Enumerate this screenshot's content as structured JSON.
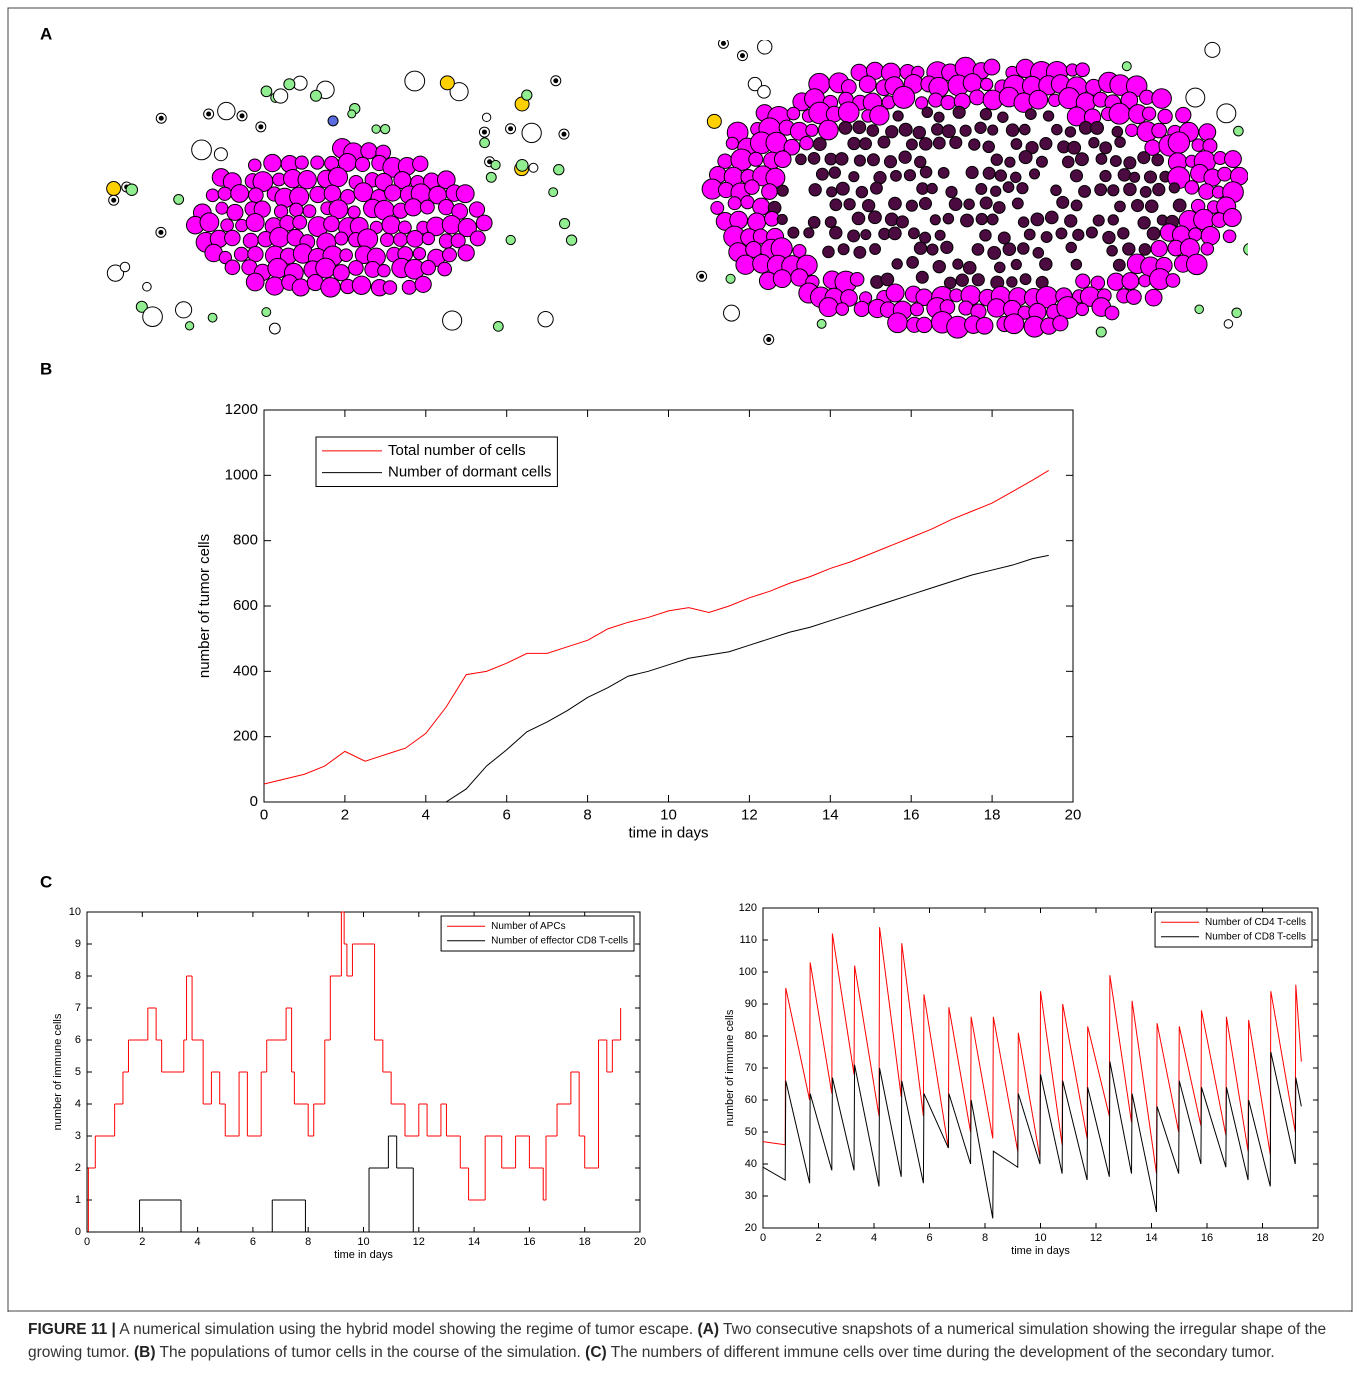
{
  "panel_labels": [
    "A",
    "B",
    "C"
  ],
  "chart_data": [
    {
      "type": "line",
      "xlabel": "time in days",
      "ylabel": "number of tumor cells",
      "xlim": [
        0,
        20
      ],
      "xticks": [
        0,
        2,
        4,
        6,
        8,
        10,
        12,
        14,
        16,
        18,
        20
      ],
      "ylim": [
        0,
        1200
      ],
      "yticks": [
        0,
        200,
        400,
        600,
        800,
        1000,
        1200
      ],
      "legend": "upper left",
      "x": [
        0,
        0.5,
        1,
        1.5,
        2,
        2.5,
        3,
        3.5,
        4,
        4.5,
        5,
        5.5,
        6,
        6.5,
        7,
        7.5,
        8,
        8.5,
        9,
        9.5,
        10,
        10.5,
        11,
        11.5,
        12,
        12.5,
        13,
        13.5,
        14,
        14.5,
        15,
        15.5,
        16,
        16.5,
        17,
        17.5,
        18,
        18.5,
        19,
        19.4
      ],
      "series": [
        {
          "name": "Total number of cells",
          "color": "#ff0000",
          "values": [
            55,
            70,
            85,
            110,
            155,
            125,
            145,
            165,
            210,
            290,
            390,
            400,
            425,
            455,
            455,
            475,
            495,
            530,
            550,
            565,
            585,
            595,
            580,
            600,
            625,
            645,
            670,
            690,
            715,
            735,
            760,
            785,
            810,
            835,
            865,
            890,
            915,
            950,
            985,
            1015
          ]
        },
        {
          "name": "Number of dormant cells",
          "color": "#000000",
          "values": [
            0,
            0,
            0,
            0,
            0,
            0,
            0,
            0,
            0,
            0,
            40,
            110,
            160,
            215,
            245,
            280,
            320,
            350,
            385,
            400,
            420,
            440,
            450,
            460,
            480,
            500,
            520,
            535,
            555,
            575,
            595,
            615,
            635,
            655,
            675,
            695,
            710,
            725,
            745,
            755
          ]
        }
      ]
    },
    {
      "type": "step",
      "xlabel": "time in days",
      "ylabel": "number of immune cells",
      "xlim": [
        0,
        20
      ],
      "xticks": [
        0,
        2,
        4,
        6,
        8,
        10,
        12,
        14,
        16,
        18,
        20
      ],
      "ylim": [
        0,
        10
      ],
      "yticks": [
        0,
        1,
        2,
        3,
        4,
        5,
        6,
        7,
        8,
        9,
        10
      ],
      "legend": "upper right",
      "series": [
        {
          "name": "Number of APCs",
          "color": "#ff0000",
          "x": [
            0,
            0.05,
            0.3,
            1.0,
            1.3,
            1.5,
            2.2,
            2.5,
            2.7,
            3.5,
            3.6,
            3.8,
            4.2,
            4.5,
            4.8,
            5.0,
            5.5,
            5.8,
            6.3,
            6.5,
            7.2,
            7.4,
            7.5,
            8.0,
            8.2,
            8.6,
            8.8,
            9.2,
            9.3,
            9.4,
            9.6,
            10.4,
            10.7,
            11.0,
            11.5,
            12.0,
            12.3,
            12.8,
            13.0,
            13.5,
            13.8,
            14.4,
            15.0,
            15.5,
            16.0,
            16.5,
            16.6,
            17.0,
            17.5,
            17.8,
            18.0,
            18.5,
            18.8,
            19.0,
            19.3
          ],
          "values": [
            0,
            2,
            3,
            4,
            5,
            6,
            7,
            6,
            5,
            6,
            8,
            6,
            4,
            5,
            4,
            3,
            5,
            3,
            5,
            6,
            7,
            5,
            4,
            3,
            4,
            6,
            8,
            10,
            9,
            8,
            9,
            6,
            5,
            4,
            3,
            4,
            3,
            4,
            3,
            2,
            1,
            3,
            2,
            3,
            2,
            1,
            3,
            4,
            5,
            3,
            2,
            6,
            5,
            6,
            7
          ]
        },
        {
          "name": "Number of effector CD8 T-cells",
          "color": "#000000",
          "x": [
            0,
            1.9,
            3.4,
            6.7,
            7.9,
            10.2,
            10.9,
            11.2,
            11.8,
            19.4
          ],
          "values": [
            0,
            1,
            0,
            1,
            0,
            2,
            3,
            2,
            0,
            0
          ]
        }
      ]
    },
    {
      "type": "line",
      "xlabel": "time in days",
      "ylabel": "number of immune cells",
      "xlim": [
        0,
        20
      ],
      "xticks": [
        0,
        2,
        4,
        6,
        8,
        10,
        12,
        14,
        16,
        18,
        20
      ],
      "ylim": [
        20,
        120
      ],
      "yticks": [
        20,
        30,
        40,
        50,
        60,
        70,
        80,
        90,
        100,
        110,
        120
      ],
      "legend": "upper right",
      "x": [
        0,
        0.8,
        0.82,
        1.68,
        1.7,
        2.48,
        2.5,
        3.28,
        3.3,
        4.18,
        4.2,
        4.98,
        5.0,
        5.78,
        5.8,
        6.68,
        6.7,
        7.48,
        7.5,
        8.28,
        8.3,
        9.18,
        9.2,
        9.98,
        10.0,
        10.78,
        10.8,
        11.68,
        11.7,
        12.48,
        12.5,
        13.28,
        13.3,
        14.18,
        14.2,
        14.98,
        15.0,
        15.78,
        15.8,
        16.68,
        16.7,
        17.48,
        17.5,
        18.28,
        18.3,
        19.18,
        19.2,
        19.4
      ],
      "series": [
        {
          "name": "Number of CD4 T-cells",
          "color": "#ff0000",
          "values": [
            47,
            46,
            95,
            60,
            103,
            62,
            112,
            68,
            102,
            55,
            114,
            61,
            109,
            55,
            93,
            45,
            89,
            50,
            86,
            48,
            86,
            44,
            81,
            42,
            94,
            46,
            90,
            48,
            83,
            55,
            99,
            53,
            91,
            37,
            84,
            50,
            83,
            52,
            88,
            49,
            86,
            44,
            85,
            43,
            94,
            50,
            96,
            72
          ]
        },
        {
          "name": "Number of CD8 T-cells",
          "color": "#000000",
          "values": [
            39,
            35,
            66,
            34,
            62,
            38,
            67,
            38,
            71,
            33,
            70,
            36,
            66,
            34,
            62,
            45,
            62,
            40,
            60,
            23,
            44,
            39,
            62,
            40,
            68,
            37,
            66,
            35,
            64,
            36,
            72,
            37,
            62,
            25,
            58,
            37,
            66,
            40,
            64,
            39,
            64,
            35,
            60,
            33,
            75,
            40,
            67,
            58
          ]
        }
      ]
    }
  ],
  "caption": [
    {
      "text": "FIGURE 11 |",
      "bold": true
    },
    {
      "text": "A numerical simulation using the hybrid model showing the regime of tumor escape.",
      "bold": false
    },
    {
      "text": "(A)",
      "bold": true
    },
    {
      "text": "Two consecutive snapshots of a numerical simulation showing the irregular shape of the growing tumor.",
      "bold": false
    },
    {
      "text": "(B)",
      "bold": true
    },
    {
      "text": "The populations of tumor cells in the course of the simulation.",
      "bold": false
    },
    {
      "text": "(C)",
      "bold": true
    },
    {
      "text": "The numbers of different immune cells over time during the development of the secondary tumor.",
      "bold": false
    }
  ]
}
